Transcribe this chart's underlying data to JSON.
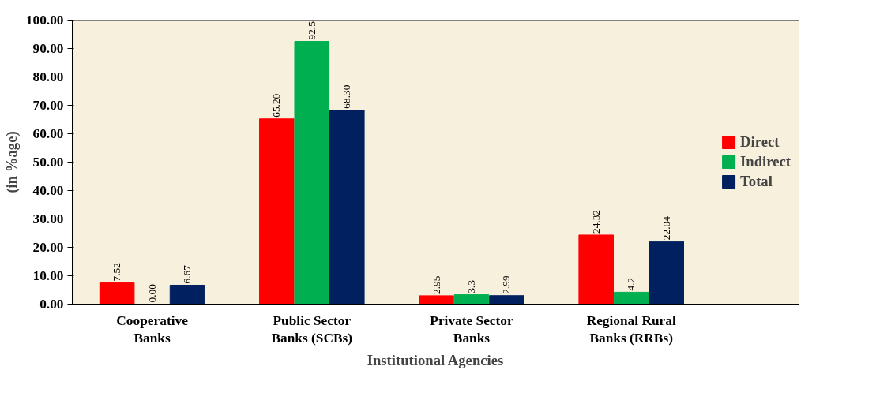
{
  "chart_data": {
    "type": "bar",
    "xlabel": "Institutional Agencies",
    "ylabel": "(in %age)",
    "categories": [
      "Cooperative Banks",
      "Public Sector Banks (SCBs)",
      "Private Sector Banks",
      "Regional Rural Banks (RRBs)"
    ],
    "series": [
      {
        "name": "Direct",
        "color": "#ff0000",
        "values": [
          7.52,
          65.2,
          2.95,
          24.32
        ],
        "value_labels": [
          "7.52",
          "65.20",
          "2.95",
          "24.32"
        ]
      },
      {
        "name": "Indirect",
        "color": "#00b050",
        "values": [
          0.0,
          92.5,
          3.3,
          4.2
        ],
        "value_labels": [
          "0.00",
          "92.5",
          "3.3",
          "4.2"
        ]
      },
      {
        "name": "Total",
        "color": "#002060",
        "values": [
          6.67,
          68.3,
          2.99,
          22.04
        ],
        "value_labels": [
          "6.67",
          "68.30",
          "2.99",
          "22.04"
        ]
      }
    ],
    "ylim": [
      0,
      100
    ],
    "yticks": [
      {
        "value": 0,
        "label": "0.00"
      },
      {
        "value": 10,
        "label": "10.00"
      },
      {
        "value": 20,
        "label": "20.00"
      },
      {
        "value": 30,
        "label": "30.00"
      },
      {
        "value": 40,
        "label": "40.00"
      },
      {
        "value": 50,
        "label": "50.00"
      },
      {
        "value": 60,
        "label": "60.00"
      },
      {
        "value": 70,
        "label": "70.00"
      },
      {
        "value": 80,
        "label": "80.00"
      },
      {
        "value": 90,
        "label": "90.00"
      },
      {
        "value": 100,
        "label": "100.00"
      }
    ],
    "grid": false,
    "legend": "right"
  }
}
